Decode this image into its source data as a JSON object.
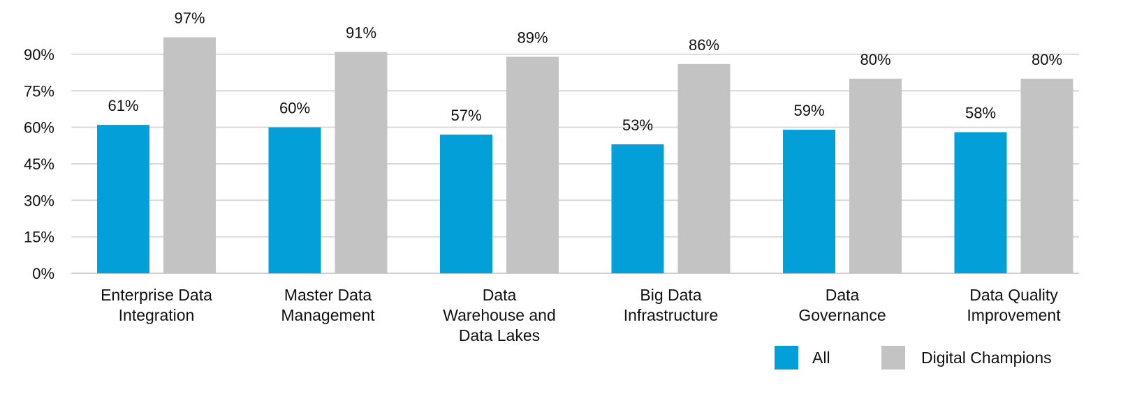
{
  "chart_data": {
    "type": "bar",
    "categories": [
      [
        "Enterprise Data",
        "Integration"
      ],
      [
        "Master Data",
        "Management"
      ],
      [
        "Data",
        "Warehouse and",
        "Data Lakes"
      ],
      [
        "Big Data",
        "Infrastructure"
      ],
      [
        "Data",
        "Governance"
      ],
      [
        "Data Quality",
        "Improvement"
      ]
    ],
    "series": [
      {
        "name": "All",
        "color": "#039fd9",
        "values": [
          61,
          60,
          57,
          53,
          59,
          58
        ],
        "labels": [
          "61%",
          "60%",
          "57%",
          "53%",
          "59%",
          "58%"
        ]
      },
      {
        "name": "Digital Champions",
        "color": "#c3c3c3",
        "values": [
          97,
          91,
          89,
          86,
          80,
          80
        ],
        "labels": [
          "97%",
          "91%",
          "89%",
          "86%",
          "80%",
          "80%"
        ]
      }
    ],
    "yticks": [
      0,
      15,
      30,
      45,
      60,
      75,
      90
    ],
    "ytick_labels": [
      "0%",
      "15%",
      "30%",
      "45%",
      "60%",
      "75%",
      "90%"
    ],
    "ylim": [
      0,
      100
    ],
    "grid": true,
    "legend": "bottom-right",
    "title": "",
    "xlabel": "",
    "ylabel": ""
  }
}
